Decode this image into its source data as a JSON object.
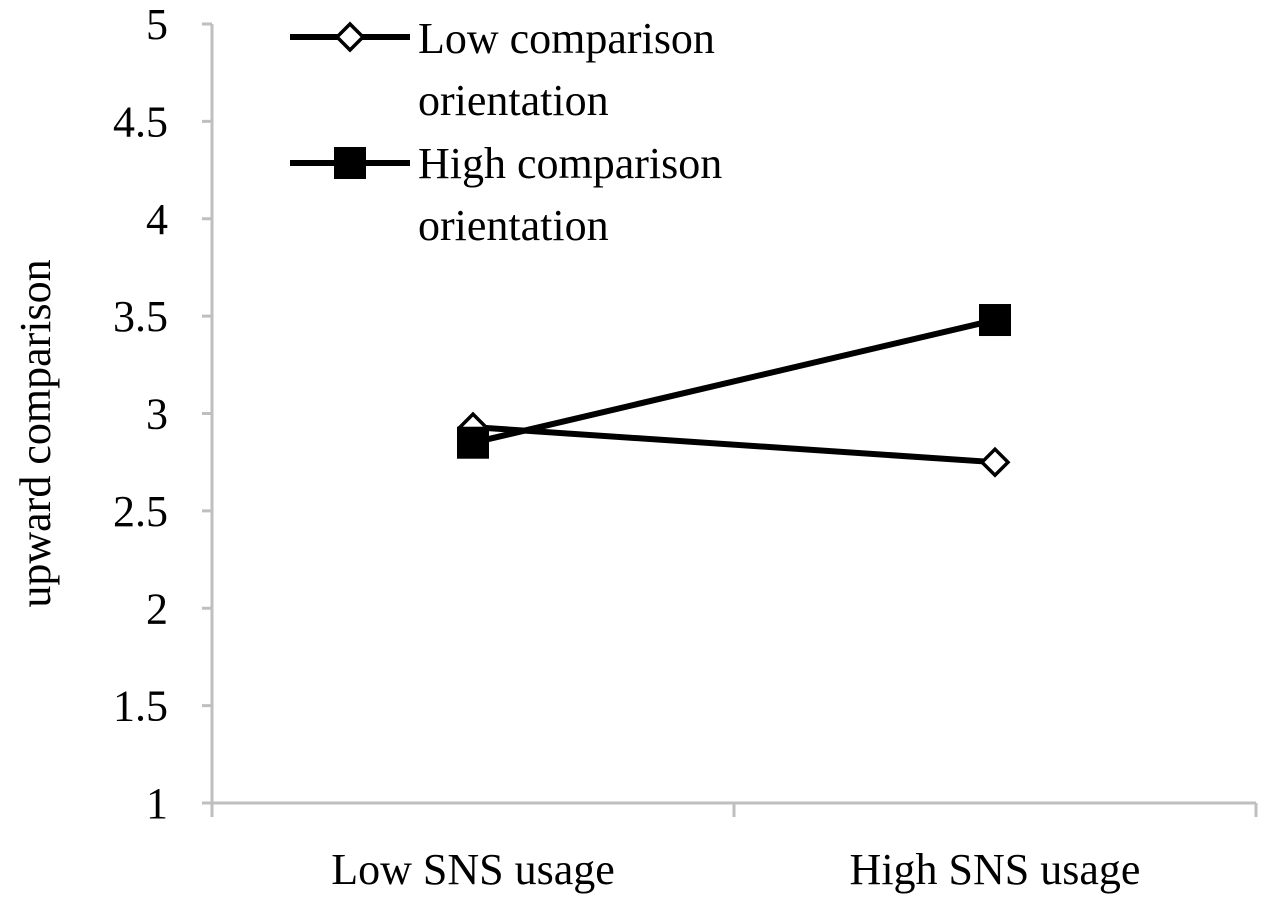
{
  "chart_data": {
    "type": "line",
    "categories": [
      "Low SNS usage",
      "High SNS usage"
    ],
    "series": [
      {
        "name": "Low comparison orientation",
        "name_lines": [
          "Low comparison",
          "orientation"
        ],
        "values": [
          2.93,
          2.75
        ],
        "marker": "diamond-open"
      },
      {
        "name": "High comparison orientation",
        "name_lines": [
          "High comparison",
          "orientation"
        ],
        "values": [
          2.85,
          3.48
        ],
        "marker": "square-filled"
      }
    ],
    "title": "",
    "xlabel": "",
    "ylabel": "upward comparison",
    "ylim": [
      1,
      5
    ],
    "yticks": [
      "1",
      "1.5",
      "2",
      "2.5",
      "3",
      "3.5",
      "4",
      "4.5",
      "5"
    ],
    "grid": false,
    "legend_position": "top-left",
    "colors": {
      "line": "#000000",
      "axis": "#bfbfbf",
      "background": "#ffffff"
    }
  }
}
